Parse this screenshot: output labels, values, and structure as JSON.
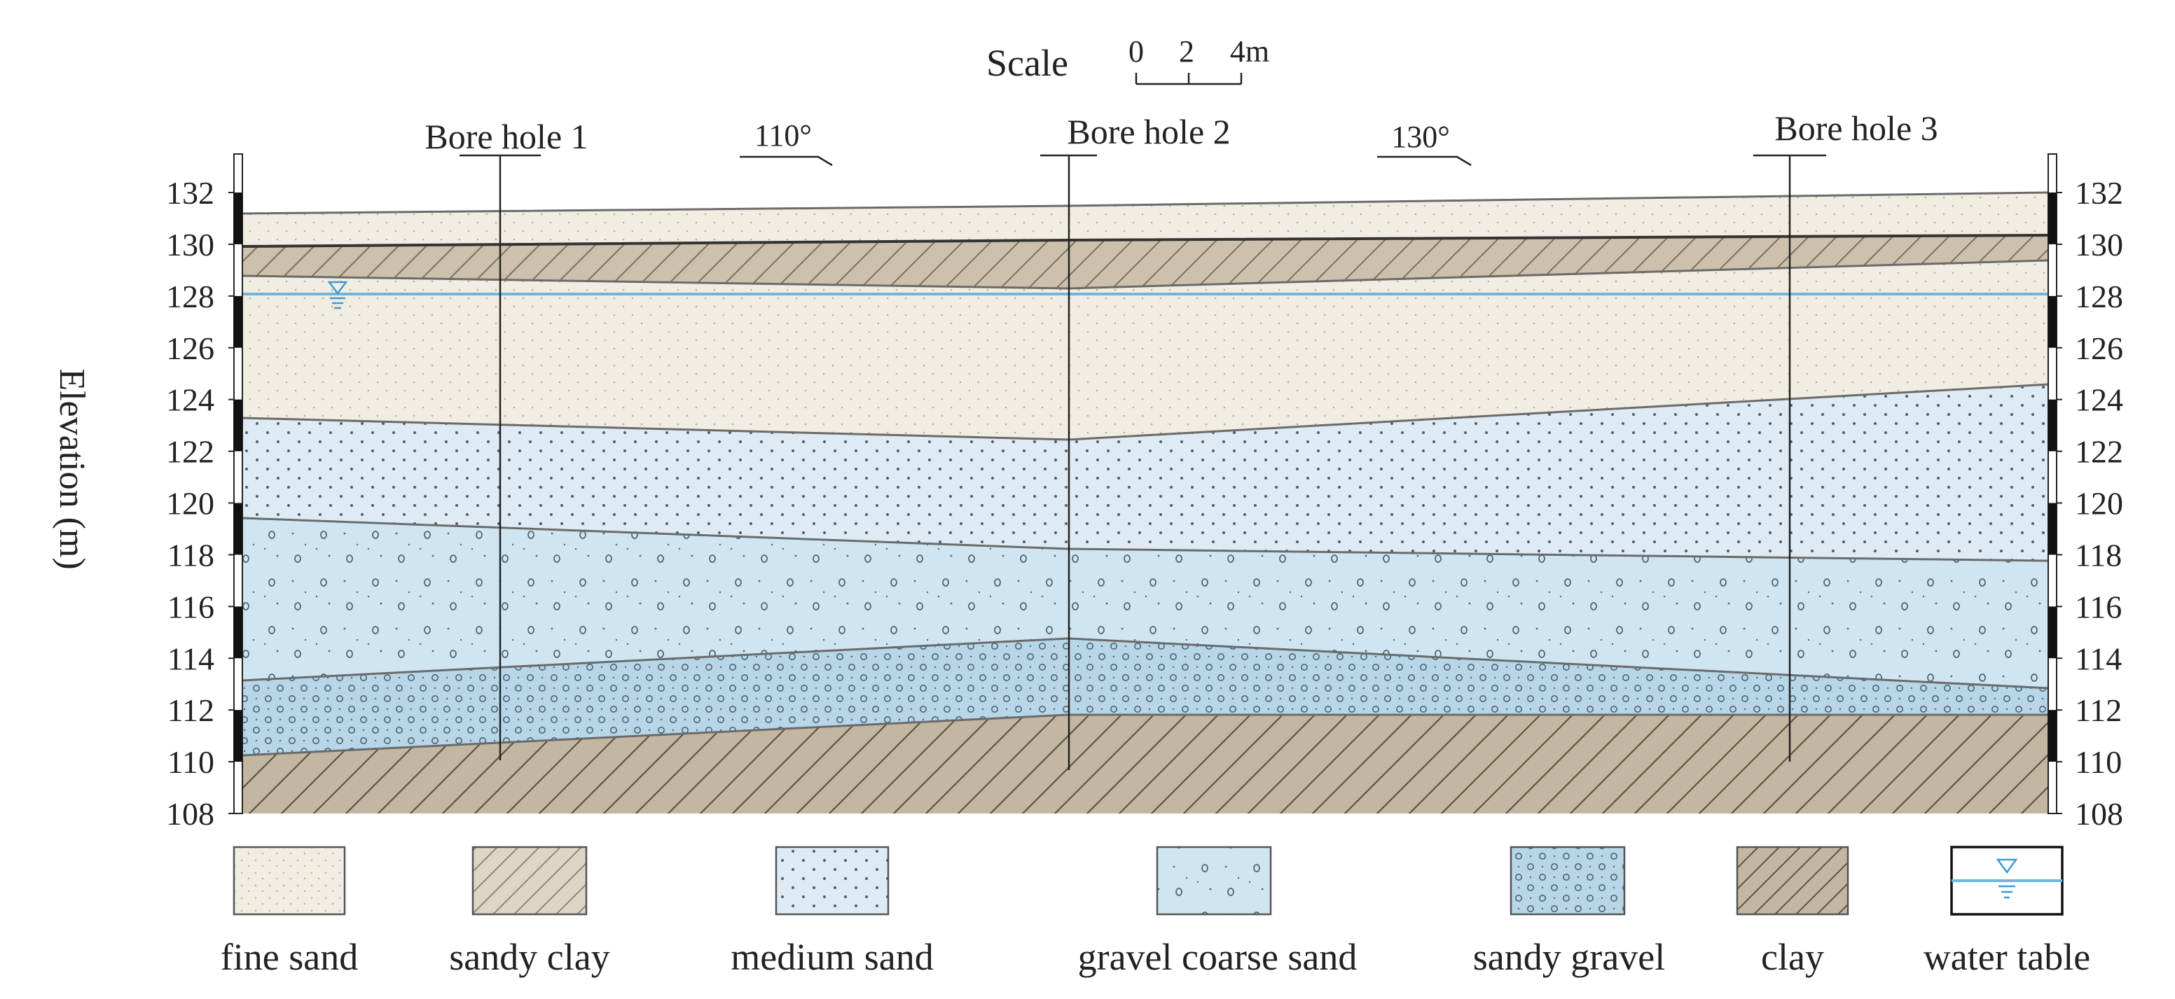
{
  "scale": {
    "label": "Scale",
    "ticks": [
      "0",
      "2",
      "4m"
    ]
  },
  "boreholes": [
    {
      "label": "Bore hole 1"
    },
    {
      "label": "Bore hole 2"
    },
    {
      "label": "Bore hole 3"
    }
  ],
  "directions": [
    {
      "label": "110°"
    },
    {
      "label": "130°"
    }
  ],
  "axis": {
    "title": "Elevation (m)",
    "min": 108,
    "max": 132,
    "ticks": [
      "132",
      "130",
      "128",
      "126",
      "124",
      "122",
      "120",
      "118",
      "116",
      "114",
      "112",
      "110",
      "108"
    ]
  },
  "legend": [
    {
      "label": "fine sand",
      "pattern": "fine-sand"
    },
    {
      "label": "sandy clay",
      "pattern": "sandy-clay"
    },
    {
      "label": "medium sand",
      "pattern": "medium-sand"
    },
    {
      "label": "gravel coarse sand",
      "pattern": "gravel-coarse-sand"
    },
    {
      "label": "sandy gravel",
      "pattern": "sandy-gravel"
    },
    {
      "label": "clay",
      "pattern": "clay"
    },
    {
      "label": "water table",
      "pattern": "water-table"
    }
  ],
  "colors": {
    "fine_sand": "#f1ede2",
    "sandy_clay": "#cdc1ad",
    "medium_sand": "#deebf4",
    "gravel_coarse_sand": "#cfe6f2",
    "sandy_gravel": "#b7d6e8",
    "clay": "#c3b7a2",
    "water_line": "#6fb6dc",
    "hatch": "#5b5345"
  }
}
